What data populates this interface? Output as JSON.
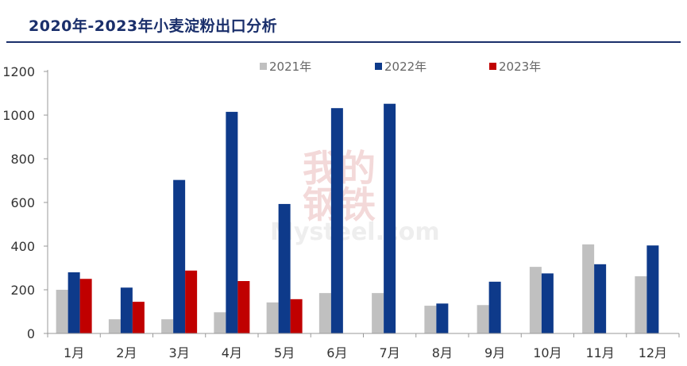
{
  "title": "2020年-2023年小麦淀粉出口分析",
  "watermark": {
    "line1": "我的",
    "line2": "钢铁",
    "line3": "Mysteel.com"
  },
  "chart_data": {
    "type": "bar",
    "title": "2020年-2023年小麦淀粉出口分析",
    "categories": [
      "1月",
      "2月",
      "3月",
      "4月",
      "5月",
      "6月",
      "7月",
      "8月",
      "9月",
      "10月",
      "11月",
      "12月"
    ],
    "series": [
      {
        "name": "2021年",
        "color": "#c0c0c0",
        "values": [
          200,
          65,
          65,
          97,
          142,
          185,
          185,
          127,
          130,
          305,
          408,
          262
        ]
      },
      {
        "name": "2022年",
        "color": "#0e3a8a",
        "values": [
          280,
          210,
          703,
          1015,
          593,
          1032,
          1052,
          137,
          237,
          275,
          317,
          403
        ]
      },
      {
        "name": "2023年",
        "color": "#c00000",
        "values": [
          250,
          145,
          288,
          240,
          157,
          null,
          null,
          null,
          null,
          null,
          null,
          null
        ]
      }
    ],
    "yticks": [
      0,
      200,
      400,
      600,
      800,
      1000,
      1200
    ],
    "ylim": [
      0,
      1200
    ],
    "grid": false,
    "legend_position": "top-center",
    "xlabel": "",
    "ylabel": ""
  }
}
